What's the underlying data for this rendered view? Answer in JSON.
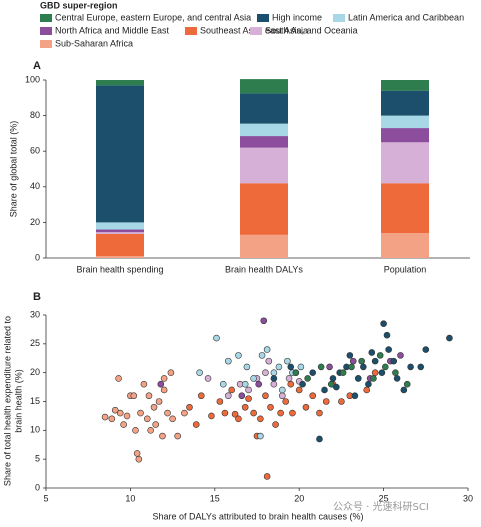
{
  "chart_data": [
    {
      "type": "stacked-bar",
      "panel": "A",
      "legend_title": "GBD super-region",
      "ylabel": "Share of global total (%)",
      "categories": [
        "Brain health spending",
        "Brain health DALYs",
        "Population"
      ],
      "ylim": [
        0,
        100
      ],
      "yticks": [
        0,
        20,
        40,
        60,
        80,
        100
      ],
      "series": [
        {
          "name": "Sub-Saharan Africa",
          "color": "#f4a285",
          "values": [
            1,
            13,
            14
          ]
        },
        {
          "name": "Southeast Asia, east Asia, and Oceania",
          "color": "#ee6a3b",
          "values": [
            12.5,
            29,
            28
          ]
        },
        {
          "name": "South Asia",
          "color": "#d6b0d6",
          "values": [
            1,
            20,
            23
          ]
        },
        {
          "name": "North Africa and Middle East",
          "color": "#8b4d9c",
          "values": [
            1.5,
            6.5,
            8
          ]
        },
        {
          "name": "Latin America and Caribbean",
          "color": "#a8d8e6",
          "values": [
            4,
            7,
            7
          ]
        },
        {
          "name": "High income",
          "color": "#1b4f6b",
          "values": [
            77,
            17,
            14
          ]
        },
        {
          "name": "Central Europe, eastern Europe, and central Asia",
          "color": "#2e7d4f",
          "values": [
            3,
            8,
            6
          ]
        }
      ]
    },
    {
      "type": "scatter",
      "panel": "B",
      "xlabel": "Share of DALYs attributed to brain health causes (%)",
      "ylabel": [
        "Share of total health expenditure related to",
        "brain health (%)"
      ],
      "xlim": [
        5,
        30
      ],
      "xticks": [
        5,
        10,
        15,
        20,
        25,
        30
      ],
      "ylim": [
        0,
        30
      ],
      "yticks": [
        0,
        5,
        10,
        15,
        20,
        25,
        30
      ],
      "series": [
        {
          "name": "Sub-Saharan Africa",
          "color": "#f4a285",
          "x": [
            8.5,
            8.9,
            9.3,
            9.4,
            9.6,
            9.8,
            10,
            10.2,
            10.4,
            10.5,
            10.6,
            10.8,
            11,
            11.2,
            11.4,
            11.5,
            11.7,
            11.9,
            12,
            12.2,
            12.4,
            12.5,
            12.8,
            13.2,
            10.3,
            11.1,
            9.1,
            12
          ],
          "values": [
            12.3,
            12,
            19,
            13,
            11,
            12.5,
            16,
            16,
            6,
            5,
            13,
            18,
            12,
            10,
            14,
            11,
            15,
            9,
            17,
            13,
            20,
            12,
            9,
            13,
            10,
            16,
            13.5,
            19
          ]
        },
        {
          "name": "Southeast Asia, east Asia, and Oceania",
          "color": "#ee6a3b",
          "x": [
            13.5,
            14.2,
            14.8,
            15.3,
            15.6,
            16,
            16.4,
            16.8,
            17,
            17.3,
            17.7,
            18,
            18.3,
            18.6,
            18.9,
            19.2,
            19.6,
            20,
            20.4,
            20.8,
            21.2,
            21.6,
            22,
            22.5,
            23,
            23.5,
            24,
            24.5,
            18.1,
            19.5,
            17.5,
            16.2,
            13.9
          ],
          "values": [
            14,
            16,
            12.5,
            15,
            13,
            17,
            12,
            14,
            15.5,
            13,
            12,
            16,
            14,
            11,
            13,
            15,
            13,
            17,
            14,
            16,
            13,
            15,
            18,
            15,
            16,
            19,
            17,
            20,
            2,
            18,
            9,
            12.8,
            11
          ]
        },
        {
          "name": "South Asia",
          "color": "#d6b0d6",
          "x": [
            14.6,
            15.8,
            16.5,
            17,
            17.5,
            18,
            18.5,
            19,
            19.4,
            20,
            18.2
          ],
          "values": [
            19,
            16,
            18,
            17,
            19,
            20,
            18,
            16,
            19,
            18.5,
            22
          ]
        },
        {
          "name": "North Africa and Middle East",
          "color": "#8b4d9c",
          "x": [
            11.8,
            16.6,
            17.9,
            19.8,
            21.8,
            23.2,
            24.2,
            25.4,
            26,
            17.6
          ],
          "values": [
            18,
            16,
            29,
            20,
            21,
            22,
            19,
            22,
            23,
            18
          ]
        },
        {
          "name": "Latin America and Caribbean",
          "color": "#a8d8e6",
          "x": [
            14.1,
            15.1,
            15.8,
            16.4,
            16.9,
            17.3,
            17.8,
            18.1,
            18.5,
            18.8,
            19.3,
            19.6,
            20.1,
            17.7,
            15.5,
            16.8,
            19
          ],
          "values": [
            20,
            26,
            22,
            23,
            21,
            19,
            23,
            24,
            20,
            21,
            22,
            20,
            21,
            9,
            18,
            18,
            17
          ]
        },
        {
          "name": "High income",
          "color": "#1b4f6b",
          "x": [
            18.5,
            19.5,
            20.2,
            20.8,
            21.2,
            21.5,
            22,
            22.4,
            22.8,
            23,
            23.5,
            23.8,
            24.1,
            24.5,
            24.9,
            25,
            25.3,
            25.6,
            25.8,
            26.2,
            26.6,
            27.2,
            27.5,
            28.9,
            24.3,
            23.3,
            22.2,
            25.2
          ],
          "values": [
            19,
            21,
            18,
            20,
            8.5,
            17,
            19,
            20,
            21,
            23,
            19,
            21,
            18,
            22,
            20,
            28.5,
            24,
            22,
            19,
            17,
            21,
            21,
            24,
            26,
            23.5,
            16,
            17.5,
            26.5
          ]
        },
        {
          "name": "Central Europe, eastern Europe, and central Asia",
          "color": "#2e7d4f",
          "x": [
            19.8,
            20.5,
            21.3,
            21.9,
            22.6,
            23.1,
            23.7,
            24.4,
            25.1,
            25.7,
            26.4,
            24.8
          ],
          "values": [
            20,
            19,
            21,
            18,
            20,
            21,
            22,
            19,
            21,
            20,
            18,
            23
          ]
        }
      ]
    }
  ],
  "watermark": "公众号 · 光速科研SCI"
}
